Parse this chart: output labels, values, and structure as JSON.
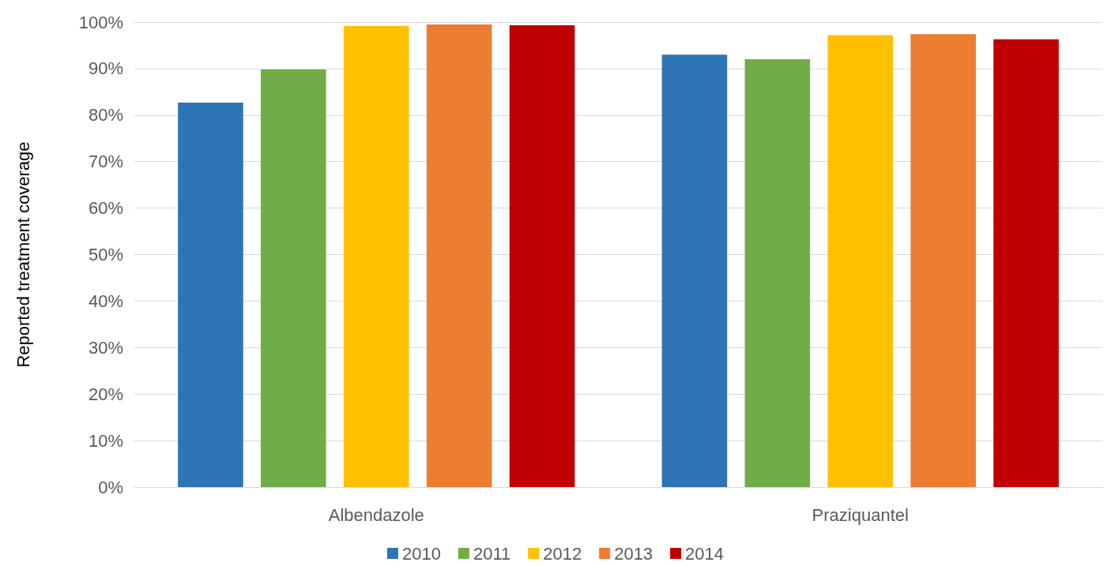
{
  "chart_data": {
    "type": "bar",
    "ylabel": "Reported treatment coverage",
    "categories": [
      "Albendazole",
      "Praziquantel"
    ],
    "series": [
      {
        "name": "2010",
        "color": "#2e75b6",
        "values": [
          82.7,
          93.0
        ]
      },
      {
        "name": "2011",
        "color": "#70ad47",
        "values": [
          89.8,
          92.0
        ]
      },
      {
        "name": "2012",
        "color": "#ffc000",
        "values": [
          99.2,
          97.2
        ]
      },
      {
        "name": "2013",
        "color": "#ed7d31",
        "values": [
          99.5,
          97.4
        ]
      },
      {
        "name": "2014",
        "color": "#c00000",
        "values": [
          99.3,
          96.3
        ]
      }
    ],
    "ylim": [
      0,
      100
    ],
    "yticks": [
      {
        "value": 0,
        "label": "0%"
      },
      {
        "value": 10,
        "label": "10%"
      },
      {
        "value": 20,
        "label": "20%"
      },
      {
        "value": 30,
        "label": "30%"
      },
      {
        "value": 40,
        "label": "40%"
      },
      {
        "value": 50,
        "label": "50%"
      },
      {
        "value": 60,
        "label": "60%"
      },
      {
        "value": 70,
        "label": "70%"
      },
      {
        "value": 80,
        "label": "80%"
      },
      {
        "value": 90,
        "label": "90%"
      },
      {
        "value": 100,
        "label": "100%"
      }
    ],
    "grid": "y",
    "legend": "bottom"
  }
}
